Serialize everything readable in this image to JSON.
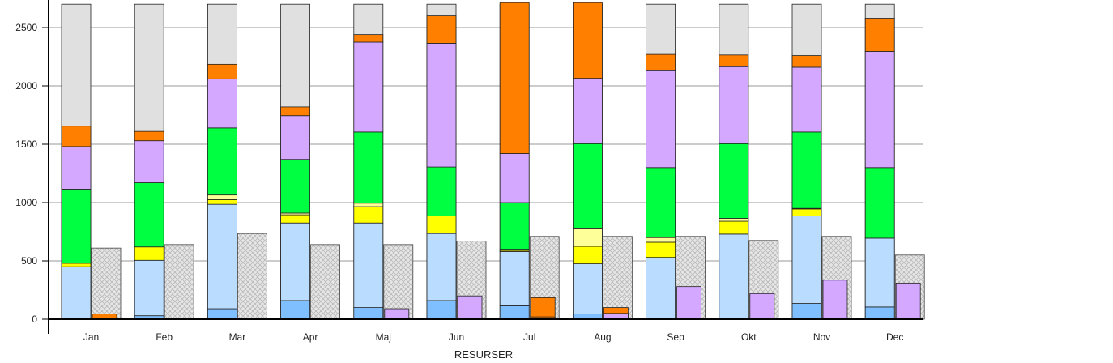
{
  "chart_data": {
    "type": "bar",
    "xlabel": "RESURSER",
    "ylabel": "",
    "title": "",
    "ylim": [
      0,
      2700
    ],
    "yticks": [
      0,
      500,
      1000,
      1500,
      2000,
      2500
    ],
    "grid": true,
    "legend": "none",
    "categories": [
      "Jan",
      "Feb",
      "Mar",
      "Apr",
      "Maj",
      "Jun",
      "Jul",
      "Aug",
      "Sep",
      "Okt",
      "Nov",
      "Dec"
    ],
    "capacity_background": [
      2700,
      2700,
      2700,
      2700,
      2700,
      2700,
      2700,
      2700,
      2700,
      2700,
      2700,
      2700
    ],
    "stack_segments": [
      {
        "color": "#7fbfff",
        "values": [
          10,
          30,
          90,
          160,
          100,
          160,
          115,
          45,
          10,
          10,
          135,
          105
        ]
      },
      {
        "color": "#b9dcff",
        "values": [
          440,
          475,
          895,
          665,
          725,
          575,
          465,
          430,
          520,
          720,
          750,
          590
        ]
      },
      {
        "color": "#ffff00",
        "values": [
          30,
          115,
          40,
          70,
          140,
          150,
          10,
          150,
          130,
          110,
          60,
          0
        ]
      },
      {
        "color": "#ffff99",
        "values": [
          0,
          0,
          40,
          15,
          30,
          0,
          10,
          150,
          40,
          25,
          5,
          0
        ]
      },
      {
        "color": "#00ff40",
        "values": [
          635,
          550,
          575,
          460,
          610,
          420,
          400,
          730,
          600,
          640,
          655,
          605
        ]
      },
      {
        "color": "#d4a8ff",
        "values": [
          365,
          360,
          420,
          375,
          770,
          1060,
          420,
          560,
          830,
          660,
          555,
          995
        ]
      },
      {
        "color": "#ff7f00",
        "values": [
          175,
          80,
          125,
          75,
          65,
          235,
          1310,
          900,
          140,
          100,
          100,
          285
        ]
      }
    ],
    "secondary": {
      "hatched_gray": [
        610,
        640,
        735,
        640,
        640,
        670,
        710,
        710,
        710,
        675,
        710,
        550
      ],
      "overlay_values": [
        45,
        0,
        0,
        0,
        90,
        200,
        185,
        100,
        280,
        220,
        335,
        310
      ],
      "overlay_colors": [
        "#ff7f00",
        "",
        "",
        "",
        "#d4a8ff",
        "#d4a8ff",
        "#ff7f00",
        "#ff7f00",
        "#d4a8ff",
        "#d4a8ff",
        "#d4a8ff",
        "#d4a8ff"
      ],
      "overlay_inner_values": [
        0,
        0,
        0,
        0,
        0,
        0,
        20,
        50,
        0,
        0,
        0,
        0
      ],
      "overlay_inner_colors": [
        "",
        "",
        "",
        "",
        "",
        "",
        "#ff7f00",
        "#d4a8ff",
        "",
        "",
        "",
        ""
      ]
    }
  }
}
